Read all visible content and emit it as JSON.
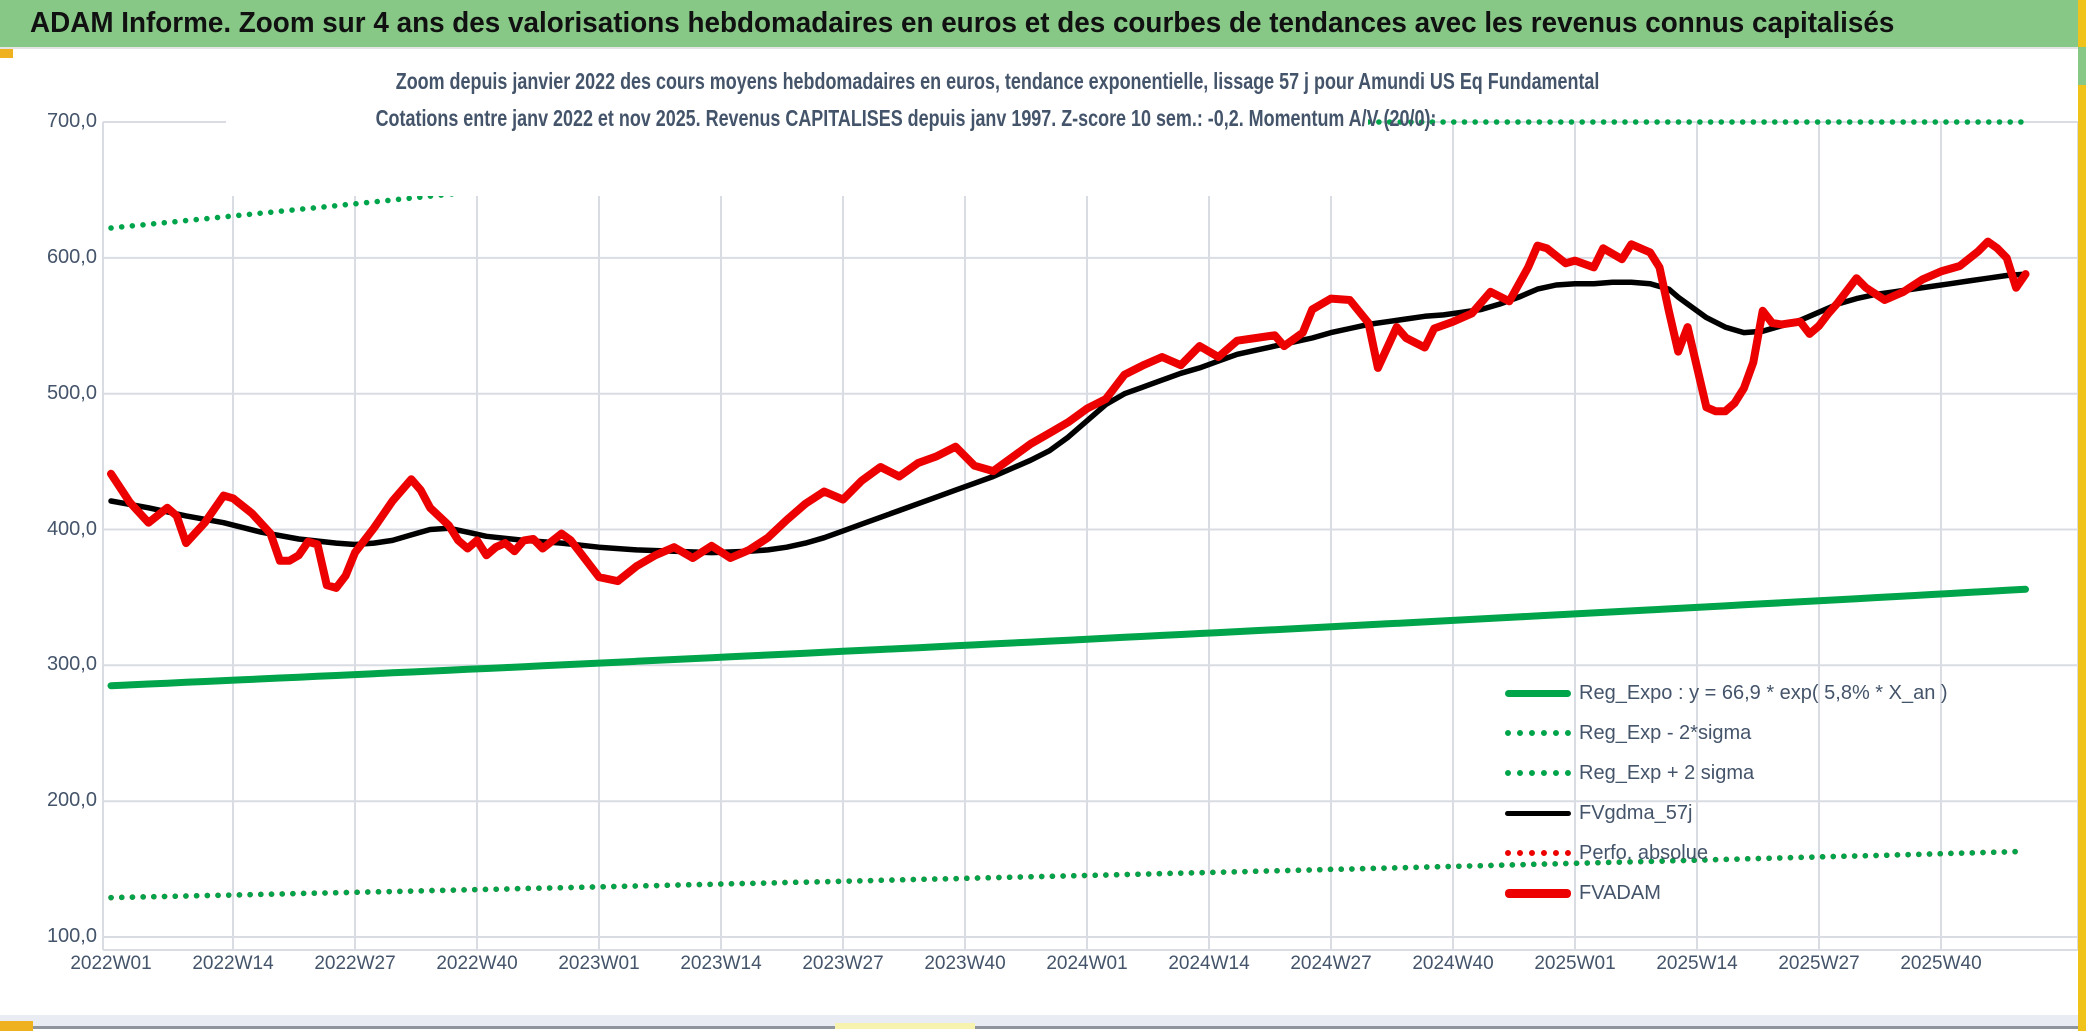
{
  "header": {
    "title": "ADAM Informe. Zoom sur 4 ans des valorisations hebdomadaires en euros et des courbes de tendances avec les revenus connus capitalisés"
  },
  "chart": {
    "title_line1": "Zoom depuis janvier 2022 des cours moyens hebdomadaires en euros, tendance exponentielle, lissage 57 j pour Amundi US Eq Fundamental",
    "title_line2": "Cotations entre janv 2022 et nov 2025. Revenus CAPITALISES depuis janv 1997. Z-score 10 sem.: -0,2. Momentum A/V (20/0):"
  },
  "axes": {
    "y_ticks": [
      "700,0",
      "600,0",
      "500,0",
      "400,0",
      "300,0",
      "200,0",
      "100,0"
    ],
    "x_ticks": [
      "2022W01",
      "2022W14",
      "2022W27",
      "2022W40",
      "2023W01",
      "2023W14",
      "2023W27",
      "2023W40",
      "2024W01",
      "2024W14",
      "2024W27",
      "2024W40",
      "2025W01",
      "2025W14",
      "2025W27",
      "2025W40"
    ]
  },
  "legend": {
    "items": [
      {
        "label": "Reg_Expo : y = 66,9 * exp( 5,8% *  X_an )",
        "style": "solid",
        "color": "#00A44A",
        "weight": 7
      },
      {
        "label": "Reg_Exp - 2*sigma",
        "style": "dotted",
        "color": "#00A44A",
        "weight": 6
      },
      {
        "label": "Reg_Exp + 2 sigma",
        "style": "dotted",
        "color": "#00A44A",
        "weight": 6
      },
      {
        "label": "FVgdma_57j",
        "style": "solid",
        "color": "#000000",
        "weight": 5
      },
      {
        "label": "Perfo. absolue",
        "style": "dotted",
        "color": "#EC0000",
        "weight": 6
      },
      {
        "label": "FVADAM",
        "style": "solid",
        "color": "#EC0000",
        "weight": 9
      }
    ]
  },
  "chart_data": {
    "type": "line",
    "title": "Zoom depuis janvier 2022 des cours moyens hebdomadaires en euros, tendance exponentielle, lissage 57 j pour Amundi US Eq Fundamental",
    "subtitle": "Cotations entre janv 2022 et nov 2025. Revenus CAPITALISES depuis janv 1997. Z-score 10 sem.: -0,2. Momentum A/V (20/0):",
    "x_unit": "week index from 2022W01 (0) to 2025W48 (204)",
    "x_tick_weeks": [
      0,
      13,
      26,
      39,
      52,
      65,
      78,
      91,
      104,
      117,
      130,
      143,
      156,
      169,
      182,
      195
    ],
    "x_tick_labels": [
      "2022W01",
      "2022W14",
      "2022W27",
      "2022W40",
      "2023W01",
      "2023W14",
      "2023W27",
      "2023W40",
      "2024W01",
      "2024W14",
      "2024W27",
      "2024W40",
      "2025W01",
      "2025W14",
      "2025W27",
      "2025W40"
    ],
    "ylim": [
      100,
      700
    ],
    "y_gridline_step": 100,
    "grid": true,
    "legend_position": "inside bottom-right",
    "series": [
      {
        "name": "FVADAM",
        "color": "#EC0000",
        "style": "solid",
        "width": 8,
        "points": [
          [
            0,
            441
          ],
          [
            2,
            420
          ],
          [
            4,
            405
          ],
          [
            6,
            416
          ],
          [
            7,
            410
          ],
          [
            8,
            390
          ],
          [
            10,
            405
          ],
          [
            12,
            425
          ],
          [
            13,
            423
          ],
          [
            15,
            412
          ],
          [
            17,
            397
          ],
          [
            18,
            377
          ],
          [
            19,
            377
          ],
          [
            20,
            381
          ],
          [
            21,
            391
          ],
          [
            22,
            389
          ],
          [
            23,
            359
          ],
          [
            24,
            357
          ],
          [
            25,
            366
          ],
          [
            26,
            383
          ],
          [
            28,
            401
          ],
          [
            30,
            421
          ],
          [
            32,
            437
          ],
          [
            33,
            429
          ],
          [
            34,
            416
          ],
          [
            36,
            403
          ],
          [
            37,
            392
          ],
          [
            38,
            386
          ],
          [
            39,
            392
          ],
          [
            40,
            381
          ],
          [
            41,
            387
          ],
          [
            42,
            390
          ],
          [
            43,
            384
          ],
          [
            44,
            392
          ],
          [
            45,
            393
          ],
          [
            46,
            386
          ],
          [
            48,
            397
          ],
          [
            49,
            392
          ],
          [
            50,
            383
          ],
          [
            52,
            365
          ],
          [
            54,
            362
          ],
          [
            56,
            373
          ],
          [
            58,
            381
          ],
          [
            60,
            387
          ],
          [
            62,
            379
          ],
          [
            64,
            388
          ],
          [
            66,
            379
          ],
          [
            68,
            385
          ],
          [
            70,
            394
          ],
          [
            72,
            407
          ],
          [
            74,
            419
          ],
          [
            76,
            428
          ],
          [
            78,
            422
          ],
          [
            80,
            436
          ],
          [
            82,
            446
          ],
          [
            84,
            439
          ],
          [
            86,
            449
          ],
          [
            88,
            454
          ],
          [
            90,
            461
          ],
          [
            92,
            447
          ],
          [
            94,
            443
          ],
          [
            96,
            453
          ],
          [
            98,
            463
          ],
          [
            100,
            471
          ],
          [
            102,
            479
          ],
          [
            104,
            489
          ],
          [
            106,
            496
          ],
          [
            108,
            514
          ],
          [
            110,
            521
          ],
          [
            112,
            527
          ],
          [
            114,
            521
          ],
          [
            116,
            535
          ],
          [
            118,
            527
          ],
          [
            120,
            539
          ],
          [
            122,
            541
          ],
          [
            124,
            543
          ],
          [
            125,
            535
          ],
          [
            127,
            545
          ],
          [
            128,
            562
          ],
          [
            130,
            570
          ],
          [
            132,
            569
          ],
          [
            134,
            552
          ],
          [
            135,
            519
          ],
          [
            137,
            549
          ],
          [
            138,
            541
          ],
          [
            140,
            534
          ],
          [
            141,
            548
          ],
          [
            143,
            553
          ],
          [
            145,
            559
          ],
          [
            147,
            575
          ],
          [
            149,
            568
          ],
          [
            151,
            593
          ],
          [
            152,
            609
          ],
          [
            153,
            607
          ],
          [
            155,
            596
          ],
          [
            156,
            598
          ],
          [
            158,
            593
          ],
          [
            159,
            607
          ],
          [
            161,
            599
          ],
          [
            162,
            610
          ],
          [
            164,
            604
          ],
          [
            165,
            593
          ],
          [
            166,
            561
          ],
          [
            167,
            531
          ],
          [
            168,
            549
          ],
          [
            170,
            490
          ],
          [
            171,
            487
          ],
          [
            172,
            487
          ],
          [
            173,
            493
          ],
          [
            174,
            504
          ],
          [
            175,
            523
          ],
          [
            176,
            561
          ],
          [
            177,
            552
          ],
          [
            178,
            551
          ],
          [
            180,
            553
          ],
          [
            181,
            544
          ],
          [
            182,
            550
          ],
          [
            183,
            559
          ],
          [
            184,
            567
          ],
          [
            186,
            585
          ],
          [
            187,
            578
          ],
          [
            189,
            569
          ],
          [
            191,
            575
          ],
          [
            193,
            584
          ],
          [
            195,
            590
          ],
          [
            197,
            594
          ],
          [
            199,
            605
          ],
          [
            200,
            612
          ],
          [
            201,
            607
          ],
          [
            202,
            600
          ],
          [
            203,
            578
          ],
          [
            204,
            588
          ]
        ]
      },
      {
        "name": "FVgdma_57j",
        "color": "#000000",
        "style": "solid",
        "width": 5.5,
        "points": [
          [
            0,
            421
          ],
          [
            4,
            416
          ],
          [
            8,
            410
          ],
          [
            12,
            405
          ],
          [
            16,
            398
          ],
          [
            20,
            393
          ],
          [
            24,
            390
          ],
          [
            26,
            389
          ],
          [
            28,
            390
          ],
          [
            30,
            392
          ],
          [
            32,
            396
          ],
          [
            34,
            400
          ],
          [
            36,
            401
          ],
          [
            38,
            398
          ],
          [
            40,
            395
          ],
          [
            44,
            392
          ],
          [
            48,
            390
          ],
          [
            52,
            387
          ],
          [
            56,
            385
          ],
          [
            60,
            384
          ],
          [
            64,
            383
          ],
          [
            68,
            384
          ],
          [
            70,
            385
          ],
          [
            72,
            387
          ],
          [
            74,
            390
          ],
          [
            76,
            394
          ],
          [
            78,
            399
          ],
          [
            80,
            404
          ],
          [
            82,
            409
          ],
          [
            84,
            414
          ],
          [
            86,
            419
          ],
          [
            88,
            424
          ],
          [
            90,
            429
          ],
          [
            92,
            434
          ],
          [
            94,
            439
          ],
          [
            96,
            445
          ],
          [
            98,
            451
          ],
          [
            100,
            458
          ],
          [
            102,
            468
          ],
          [
            104,
            480
          ],
          [
            106,
            492
          ],
          [
            108,
            500
          ],
          [
            110,
            505
          ],
          [
            112,
            510
          ],
          [
            114,
            515
          ],
          [
            116,
            519
          ],
          [
            118,
            524
          ],
          [
            120,
            529
          ],
          [
            122,
            532
          ],
          [
            124,
            535
          ],
          [
            126,
            538
          ],
          [
            128,
            541
          ],
          [
            130,
            545
          ],
          [
            132,
            548
          ],
          [
            134,
            551
          ],
          [
            136,
            553
          ],
          [
            138,
            555
          ],
          [
            140,
            557
          ],
          [
            142,
            558
          ],
          [
            144,
            560
          ],
          [
            146,
            562
          ],
          [
            148,
            566
          ],
          [
            150,
            571
          ],
          [
            152,
            577
          ],
          [
            154,
            580
          ],
          [
            156,
            581
          ],
          [
            158,
            581
          ],
          [
            160,
            582
          ],
          [
            162,
            582
          ],
          [
            164,
            581
          ],
          [
            166,
            577
          ],
          [
            167,
            571
          ],
          [
            168,
            566
          ],
          [
            170,
            556
          ],
          [
            172,
            549
          ],
          [
            174,
            545
          ],
          [
            176,
            546
          ],
          [
            178,
            550
          ],
          [
            180,
            554
          ],
          [
            182,
            560
          ],
          [
            184,
            566
          ],
          [
            186,
            570
          ],
          [
            188,
            573
          ],
          [
            190,
            575
          ],
          [
            192,
            577
          ],
          [
            194,
            579
          ],
          [
            196,
            581
          ],
          [
            198,
            583
          ],
          [
            200,
            585
          ],
          [
            202,
            587
          ],
          [
            204,
            588
          ]
        ]
      },
      {
        "name": "Reg_Expo",
        "color": "#00A44A",
        "style": "solid",
        "width": 7,
        "model": "exponential",
        "start_value": 285,
        "end_value": 356,
        "equation": "y = 66,9 * exp( 5,8% * X_an )"
      },
      {
        "name": "Reg_Exp - 2*sigma",
        "color": "#00A44A",
        "style": "dotted",
        "width": 5.5,
        "model": "exponential",
        "start_value": 129,
        "end_value": 163
      },
      {
        "name": "Reg_Exp + 2 sigma",
        "color": "#00A44A",
        "style": "dotted",
        "width": 5.5,
        "model": "exponential",
        "start_value": 622,
        "end_value": 776,
        "clip_max": 700
      },
      {
        "name": "Perfo. absolue",
        "color": "#EC0000",
        "style": "dotted",
        "width": 5.5,
        "model": "exponential",
        "start_value": 129,
        "end_value": 163,
        "note": "coincides with Reg_Exp - 2*sigma and is hidden beneath it"
      }
    ]
  },
  "colors": {
    "banner_green": "#87C887",
    "series_green": "#00A44A",
    "series_red": "#EC0000",
    "series_black": "#000000",
    "axis_text": "#44546A",
    "gridline": "#D9DDE3",
    "gold_border": "#EFC319",
    "orange_chip": "#EFB120"
  }
}
